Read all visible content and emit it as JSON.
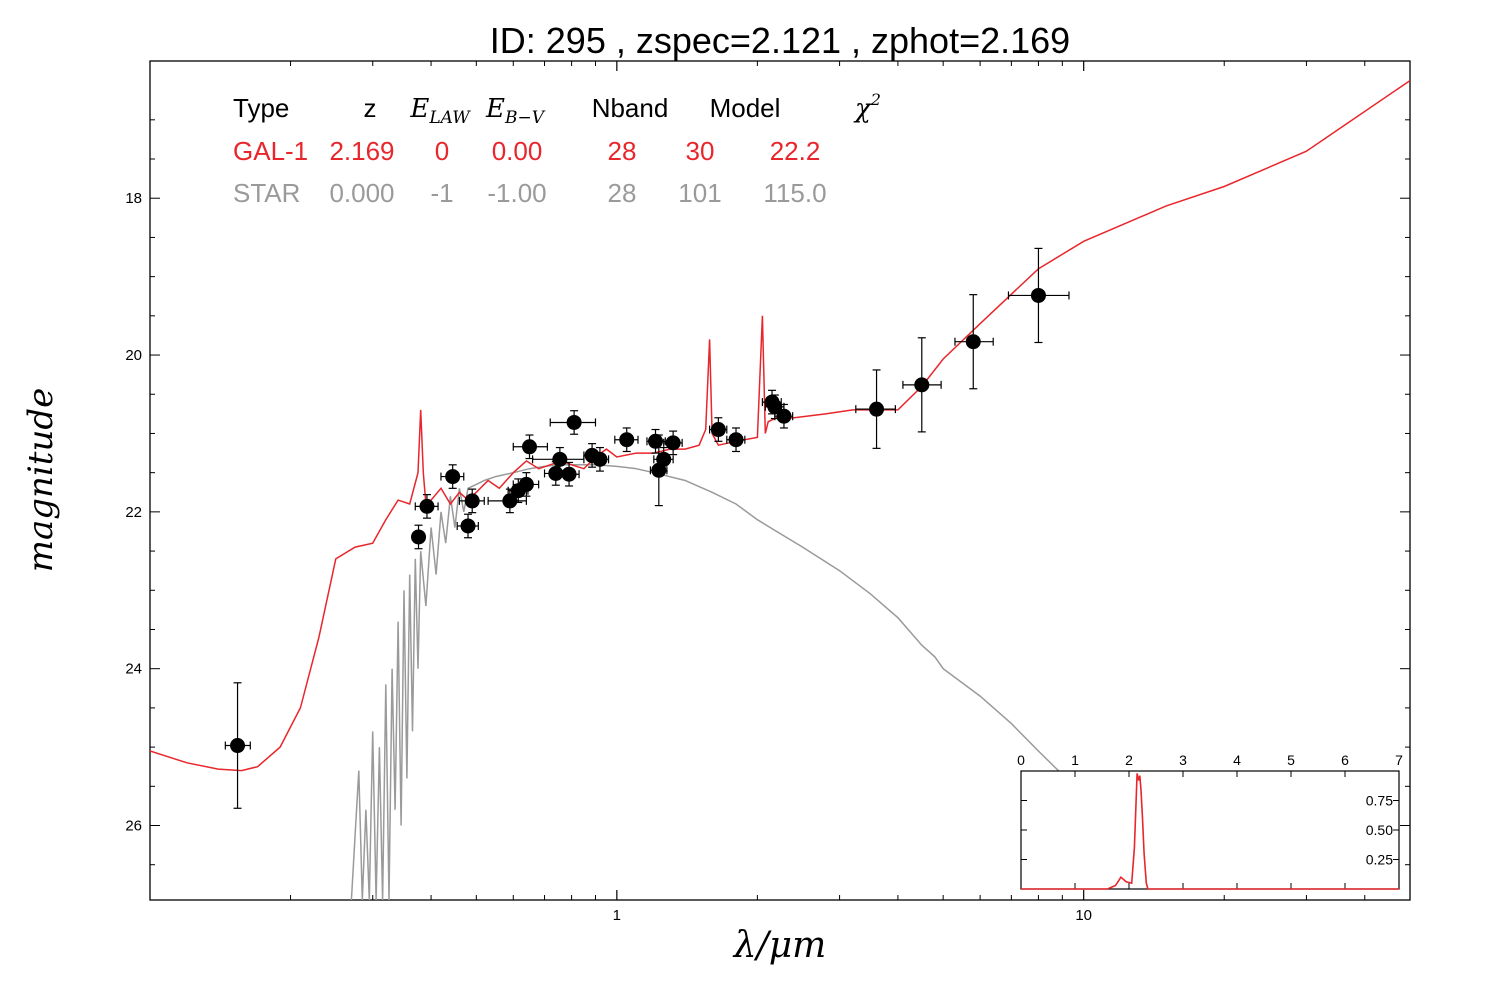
{
  "chart_data": [
    {
      "type": "scatter",
      "title": "ID:  295   , zspec=2.121 , zphot=2.169",
      "xlabel": "λ/μm",
      "ylabel": "magnitude",
      "x_scale": "log",
      "xlim": [
        0.1,
        50
      ],
      "ylim": [
        26.95,
        16.25
      ],
      "y_inverted": true,
      "x_ticks": [
        1,
        10
      ],
      "x_tick_labels": [
        "1",
        "10"
      ],
      "y_ticks": [
        18,
        20,
        22,
        24,
        26
      ],
      "y_tick_labels": [
        "18",
        "20",
        "22",
        "24",
        "26"
      ],
      "colors": {
        "galaxy": "#e8262b",
        "star": "#9a9a9a",
        "points": "#000000",
        "axes": "#000000"
      },
      "fit_table": {
        "headers": [
          "Type",
          "z",
          "E_LAW",
          "E_B−V",
          "Nband",
          "Model",
          "χ²"
        ],
        "rows": [
          {
            "cells": [
              "GAL-1",
              "2.169",
              "0",
              "0.00",
              "28",
              "30",
              "22.2"
            ],
            "color": "#e8262b"
          },
          {
            "cells": [
              "STAR",
              "0.000",
              "-1",
              "-1.00",
              "28",
              "101",
              "115.0"
            ],
            "color": "#9a9a9a"
          }
        ]
      },
      "series": [
        {
          "kind": "line",
          "color": "#e8262b",
          "x": [
            0.1,
            0.12,
            0.14,
            0.157,
            0.17,
            0.19,
            0.21,
            0.23,
            0.25,
            0.275,
            0.3,
            0.32,
            0.34,
            0.36,
            0.375,
            0.38,
            0.385,
            0.39,
            0.4,
            0.42,
            0.44,
            0.46,
            0.48,
            0.5,
            0.53,
            0.56,
            0.6,
            0.64,
            0.68,
            0.72,
            0.76,
            0.8,
            0.85,
            0.9,
            0.95,
            1.0,
            1.1,
            1.2,
            1.3,
            1.4,
            1.5,
            1.55,
            1.58,
            1.6,
            1.65,
            1.8,
            2.0,
            2.05,
            2.08,
            2.11,
            2.2,
            2.4,
            2.8,
            3.2,
            3.6,
            4.0,
            4.5,
            5.0,
            6.0,
            8.0,
            10.0,
            15.0,
            20.0,
            30.0,
            50.0
          ],
          "y": [
            25.05,
            25.2,
            25.28,
            25.3,
            25.25,
            25.0,
            24.5,
            23.6,
            22.6,
            22.45,
            22.4,
            22.1,
            21.85,
            21.9,
            21.5,
            20.7,
            21.5,
            21.9,
            21.85,
            21.7,
            21.9,
            21.75,
            21.85,
            21.75,
            21.6,
            21.7,
            21.5,
            21.35,
            21.45,
            21.4,
            21.35,
            21.4,
            21.45,
            21.3,
            21.2,
            21.3,
            21.25,
            21.25,
            21.2,
            21.2,
            21.15,
            20.95,
            19.8,
            21.0,
            21.15,
            21.1,
            21.05,
            19.5,
            21.0,
            20.85,
            20.8,
            20.8,
            20.75,
            20.7,
            20.7,
            20.7,
            20.4,
            20.05,
            19.6,
            18.9,
            18.55,
            18.1,
            17.85,
            17.4,
            16.5
          ]
        },
        {
          "kind": "line",
          "color": "#9a9a9a",
          "x": [
            0.27,
            0.28,
            0.285,
            0.29,
            0.295,
            0.3,
            0.305,
            0.31,
            0.315,
            0.32,
            0.325,
            0.33,
            0.335,
            0.34,
            0.345,
            0.35,
            0.355,
            0.36,
            0.365,
            0.37,
            0.375,
            0.38,
            0.39,
            0.4,
            0.41,
            0.42,
            0.43,
            0.44,
            0.45,
            0.46,
            0.47,
            0.48,
            0.5,
            0.52,
            0.55,
            0.6,
            0.65,
            0.7,
            0.75,
            0.8,
            0.9,
            1.0,
            1.1,
            1.2,
            1.4,
            1.6,
            1.8,
            2.0,
            2.2,
            2.5,
            3.0,
            3.5,
            4.0,
            4.5,
            4.8,
            5.0,
            6.0,
            7.0,
            8.0,
            9.0,
            10.0
          ],
          "y": [
            26.95,
            25.3,
            26.95,
            25.8,
            26.95,
            24.8,
            26.95,
            25.0,
            26.95,
            24.2,
            26.95,
            24.0,
            25.8,
            23.4,
            26.0,
            23.0,
            25.4,
            22.8,
            24.8,
            22.6,
            24.0,
            22.5,
            23.2,
            22.2,
            22.8,
            22.0,
            22.4,
            21.8,
            22.2,
            21.7,
            22.0,
            21.7,
            21.65,
            21.6,
            21.55,
            21.5,
            21.45,
            21.42,
            21.4,
            21.4,
            21.4,
            21.42,
            21.45,
            21.5,
            21.6,
            21.75,
            21.9,
            22.1,
            22.25,
            22.45,
            22.75,
            23.05,
            23.35,
            23.7,
            23.85,
            24.0,
            24.35,
            24.7,
            25.05,
            25.35,
            25.6
          ]
        },
        {
          "kind": "points",
          "color": "#000000",
          "points": [
            {
              "x": 0.154,
              "y": 24.98,
              "xerr": [
                0.145,
                0.164
              ],
              "yerr": 0.8
            },
            {
              "x": 0.376,
              "y": 22.32,
              "xerr": [
                0.366,
                0.386
              ],
              "yerr": 0.15
            },
            {
              "x": 0.392,
              "y": 21.93,
              "xerr": [
                0.37,
                0.414
              ],
              "yerr": 0.15
            },
            {
              "x": 0.445,
              "y": 21.55,
              "xerr": [
                0.42,
                0.47
              ],
              "yerr": 0.15
            },
            {
              "x": 0.48,
              "y": 22.18,
              "xerr": [
                0.455,
                0.505
              ],
              "yerr": 0.15
            },
            {
              "x": 0.49,
              "y": 21.86,
              "xerr": [
                0.46,
                0.52
              ],
              "yerr": 0.15
            },
            {
              "x": 0.59,
              "y": 21.86,
              "xerr": [
                0.53,
                0.64
              ],
              "yerr": 0.15
            },
            {
              "x": 0.615,
              "y": 21.73,
              "xerr": [
                0.585,
                0.645
              ],
              "yerr": 0.15
            },
            {
              "x": 0.64,
              "y": 21.65,
              "xerr": [
                0.6,
                0.68
              ],
              "yerr": 0.15
            },
            {
              "x": 0.65,
              "y": 21.17,
              "xerr": [
                0.6,
                0.71
              ],
              "yerr": 0.15
            },
            {
              "x": 0.74,
              "y": 21.51,
              "xerr": [
                0.7,
                0.78
              ],
              "yerr": 0.15
            },
            {
              "x": 0.755,
              "y": 21.33,
              "xerr": [
                0.66,
                0.85
              ],
              "yerr": 0.15
            },
            {
              "x": 0.79,
              "y": 21.52,
              "xerr": [
                0.75,
                0.83
              ],
              "yerr": 0.15
            },
            {
              "x": 0.81,
              "y": 20.86,
              "xerr": [
                0.72,
                0.9
              ],
              "yerr": 0.15
            },
            {
              "x": 0.885,
              "y": 21.28,
              "xerr": [
                0.85,
                0.92
              ],
              "yerr": 0.15
            },
            {
              "x": 0.92,
              "y": 21.33,
              "xerr": [
                0.88,
                0.96
              ],
              "yerr": 0.15
            },
            {
              "x": 1.05,
              "y": 21.08,
              "xerr": [
                0.99,
                1.11
              ],
              "yerr": 0.15
            },
            {
              "x": 1.21,
              "y": 21.1,
              "xerr": [
                1.16,
                1.27
              ],
              "yerr": 0.15
            },
            {
              "x": 1.23,
              "y": 21.47,
              "xerr": [
                1.18,
                1.28
              ],
              "yerr": 0.45
            },
            {
              "x": 1.26,
              "y": 21.33,
              "xerr": [
                1.2,
                1.32
              ],
              "yerr": 0.15
            },
            {
              "x": 1.32,
              "y": 21.12,
              "xerr": [
                1.26,
                1.38
              ],
              "yerr": 0.15
            },
            {
              "x": 1.65,
              "y": 20.95,
              "xerr": [
                1.58,
                1.72
              ],
              "yerr": 0.15
            },
            {
              "x": 1.8,
              "y": 21.08,
              "xerr": [
                1.72,
                1.88
              ],
              "yerr": 0.15
            },
            {
              "x": 2.15,
              "y": 20.6,
              "xerr": [
                2.05,
                2.25
              ],
              "yerr": 0.15
            },
            {
              "x": 2.18,
              "y": 20.66,
              "xerr": [
                2.08,
                2.28
              ],
              "yerr": 0.15
            },
            {
              "x": 2.28,
              "y": 20.78,
              "xerr": [
                2.18,
                2.38
              ],
              "yerr": 0.15
            },
            {
              "x": 3.6,
              "y": 20.69,
              "xerr": [
                3.25,
                3.95
              ],
              "yerr": 0.5
            },
            {
              "x": 4.5,
              "y": 20.38,
              "xerr": [
                4.1,
                4.95
              ],
              "yerr": 0.6
            },
            {
              "x": 5.8,
              "y": 19.83,
              "xerr": [
                5.3,
                6.4
              ],
              "yerr": 0.6
            },
            {
              "x": 8.0,
              "y": 19.24,
              "xerr": [
                6.9,
                9.3
              ],
              "yerr": 0.6
            }
          ]
        }
      ]
    },
    {
      "type": "line",
      "title": "",
      "xlim": [
        0,
        7
      ],
      "ylim": [
        0,
        1.0
      ],
      "x_ticks": [
        0,
        1,
        2,
        3,
        4,
        5,
        6,
        7
      ],
      "x_tick_labels": [
        "0",
        "1",
        "2",
        "3",
        "4",
        "5",
        "6",
        "7"
      ],
      "y_ticks": [
        0.25,
        0.5,
        0.75
      ],
      "y_tick_labels": [
        "0.25",
        "0.50",
        "0.75"
      ],
      "x_ticks_position": "top",
      "y_ticks_position": "right",
      "series": [
        {
          "color": "#e8262b",
          "x": [
            0.0,
            1.6,
            1.75,
            1.85,
            1.95,
            2.05,
            2.1,
            2.15,
            2.18,
            2.2,
            2.22,
            2.25,
            2.28,
            2.32,
            2.35,
            2.4,
            3.0,
            7.0
          ],
          "y": [
            0.0,
            0.0,
            0.03,
            0.1,
            0.06,
            0.05,
            0.35,
            0.98,
            0.92,
            0.96,
            0.85,
            0.6,
            0.3,
            0.05,
            0.0,
            0.0,
            0.0,
            0.0
          ]
        }
      ]
    }
  ]
}
